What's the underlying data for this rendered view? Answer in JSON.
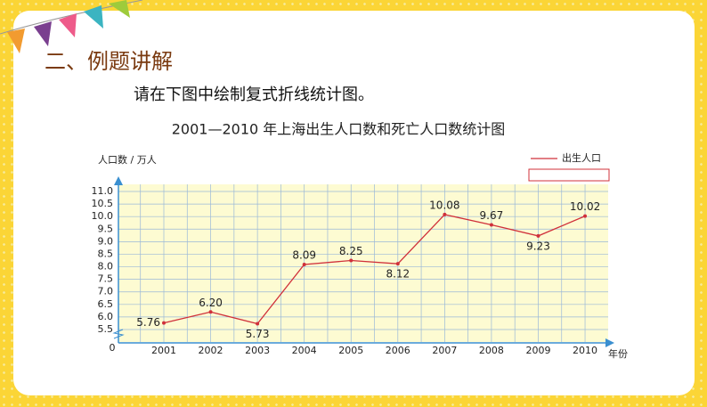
{
  "slide": {
    "section": "二、例题讲解",
    "instruction": "请在下图中绘制复式折线统计图。"
  },
  "chart_data": {
    "type": "line",
    "title": "2001—2010 年上海出生人口数和死亡人口数统计图",
    "y_label": "人口数 / 万人",
    "x_label": "年份",
    "y_origin": 0,
    "categories": [
      "2001",
      "2002",
      "2003",
      "2004",
      "2005",
      "2006",
      "2007",
      "2008",
      "2009",
      "2010"
    ],
    "series": [
      {
        "name": "出生人口",
        "color": "#d0303a",
        "values": [
          5.76,
          6.2,
          5.73,
          8.09,
          8.25,
          8.12,
          10.08,
          9.67,
          9.23,
          10.02
        ],
        "value_labels": [
          "5.76",
          "6.20",
          "5.73",
          "8.09",
          "8.25",
          "8.12",
          "10.08",
          "9.67",
          "9.23",
          "10.02"
        ]
      }
    ],
    "ylim": [
      5.5,
      11.0
    ],
    "yticks": [
      5.5,
      {
        "value": 6,
        "label": "6.0"
      },
      6.5,
      {
        "value": 7,
        "label": "7.0"
      },
      7.5,
      {
        "value": 8,
        "label": "8.0"
      },
      8.5,
      {
        "value": 9,
        "label": "9.0"
      },
      9.5,
      {
        "value": 10,
        "label": "10.0"
      },
      10.5,
      {
        "value": 11,
        "label": "11.0"
      }
    ],
    "grid": true
  }
}
